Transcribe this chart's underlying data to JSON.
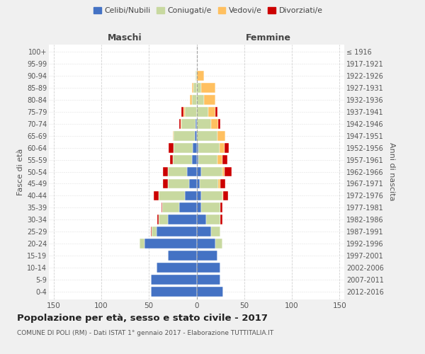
{
  "age_groups": [
    "0-4",
    "5-9",
    "10-14",
    "15-19",
    "20-24",
    "25-29",
    "30-34",
    "35-39",
    "40-44",
    "45-49",
    "50-54",
    "55-59",
    "60-64",
    "65-69",
    "70-74",
    "75-79",
    "80-84",
    "85-89",
    "90-94",
    "95-99",
    "100+"
  ],
  "birth_years": [
    "2012-2016",
    "2007-2011",
    "2002-2006",
    "1997-2001",
    "1992-1996",
    "1987-1991",
    "1982-1986",
    "1977-1981",
    "1972-1976",
    "1967-1971",
    "1962-1966",
    "1957-1961",
    "1952-1956",
    "1947-1951",
    "1942-1946",
    "1937-1941",
    "1932-1936",
    "1927-1931",
    "1922-1926",
    "1917-1921",
    "≤ 1916"
  ],
  "male": {
    "celibi": [
      48,
      48,
      42,
      30,
      55,
      42,
      30,
      18,
      12,
      8,
      10,
      5,
      4,
      2,
      1,
      0,
      0,
      0,
      0,
      0,
      0
    ],
    "coniugati": [
      0,
      0,
      0,
      0,
      5,
      5,
      10,
      18,
      28,
      22,
      20,
      20,
      20,
      22,
      15,
      12,
      5,
      3,
      1,
      0,
      0
    ],
    "vedovi": [
      0,
      0,
      0,
      0,
      0,
      0,
      0,
      0,
      0,
      0,
      0,
      0,
      0,
      1,
      1,
      2,
      2,
      2,
      0,
      0,
      0
    ],
    "divorziati": [
      0,
      0,
      0,
      0,
      0,
      1,
      1,
      1,
      5,
      5,
      5,
      3,
      5,
      0,
      1,
      2,
      0,
      0,
      0,
      0,
      0
    ]
  },
  "female": {
    "nubili": [
      28,
      25,
      25,
      22,
      20,
      15,
      10,
      5,
      5,
      3,
      5,
      2,
      2,
      0,
      0,
      0,
      0,
      0,
      0,
      0,
      0
    ],
    "coniugate": [
      0,
      0,
      0,
      0,
      7,
      10,
      15,
      20,
      22,
      20,
      22,
      20,
      22,
      22,
      15,
      12,
      8,
      5,
      0,
      0,
      0
    ],
    "vedove": [
      0,
      0,
      0,
      0,
      0,
      0,
      0,
      0,
      1,
      2,
      2,
      5,
      5,
      8,
      8,
      8,
      12,
      15,
      8,
      0,
      0
    ],
    "divorziate": [
      0,
      0,
      0,
      0,
      0,
      0,
      2,
      2,
      5,
      5,
      8,
      5,
      5,
      0,
      2,
      2,
      0,
      0,
      0,
      0,
      0
    ]
  },
  "colors": {
    "celibi": "#4472c4",
    "coniugati": "#c8d9a0",
    "vedovi": "#ffc060",
    "divorziati": "#cc0000"
  },
  "xlim": 155,
  "title": "Popolazione per età, sesso e stato civile - 2017",
  "subtitle": "COMUNE DI POLI (RM) - Dati ISTAT 1° gennaio 2017 - Elaborazione TUTTITALIA.IT",
  "ylabel_left": "Fasce di età",
  "ylabel_right": "Anni di nascita",
  "xlabel_left": "Maschi",
  "xlabel_right": "Femmine",
  "bg_color": "#f0f0f0",
  "plot_bg_color": "#ffffff",
  "grid_color": "#cccccc"
}
